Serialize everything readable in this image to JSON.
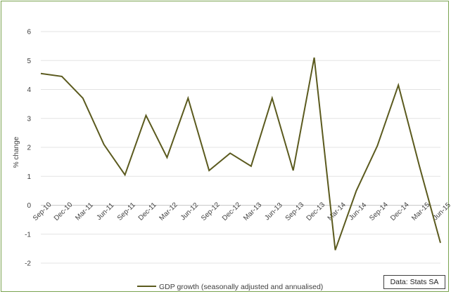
{
  "chart_data": {
    "type": "line",
    "title": "",
    "xlabel": "",
    "ylabel": "% change",
    "ylim": [
      -2,
      6
    ],
    "yticks": [
      -2,
      -1,
      0,
      1,
      2,
      3,
      4,
      5,
      6
    ],
    "grid": true,
    "legend_position": "bottom",
    "categories": [
      "Sep-10",
      "Dec-10",
      "Mar-11",
      "Jun-11",
      "Sep-11",
      "Dec-11",
      "Mar-12",
      "Jun-12",
      "Sep-12",
      "Dec-12",
      "Mar-13",
      "Jun-13",
      "Sep-13",
      "Dec-13",
      "Mar-14",
      "Jun-14",
      "Sep-14",
      "Dec-14",
      "Mar-15",
      "Jun-15"
    ],
    "series": [
      {
        "name": "GDP growth (seasonally adjusted and annualised)",
        "color": "#5b5a1e",
        "values": [
          4.55,
          4.45,
          3.7,
          2.1,
          1.05,
          3.1,
          1.65,
          3.7,
          1.2,
          1.8,
          1.35,
          3.7,
          1.2,
          5.1,
          -1.55,
          0.5,
          2.05,
          4.15,
          1.35,
          -1.3
        ]
      }
    ],
    "source_note": "Data: Stats SA"
  }
}
